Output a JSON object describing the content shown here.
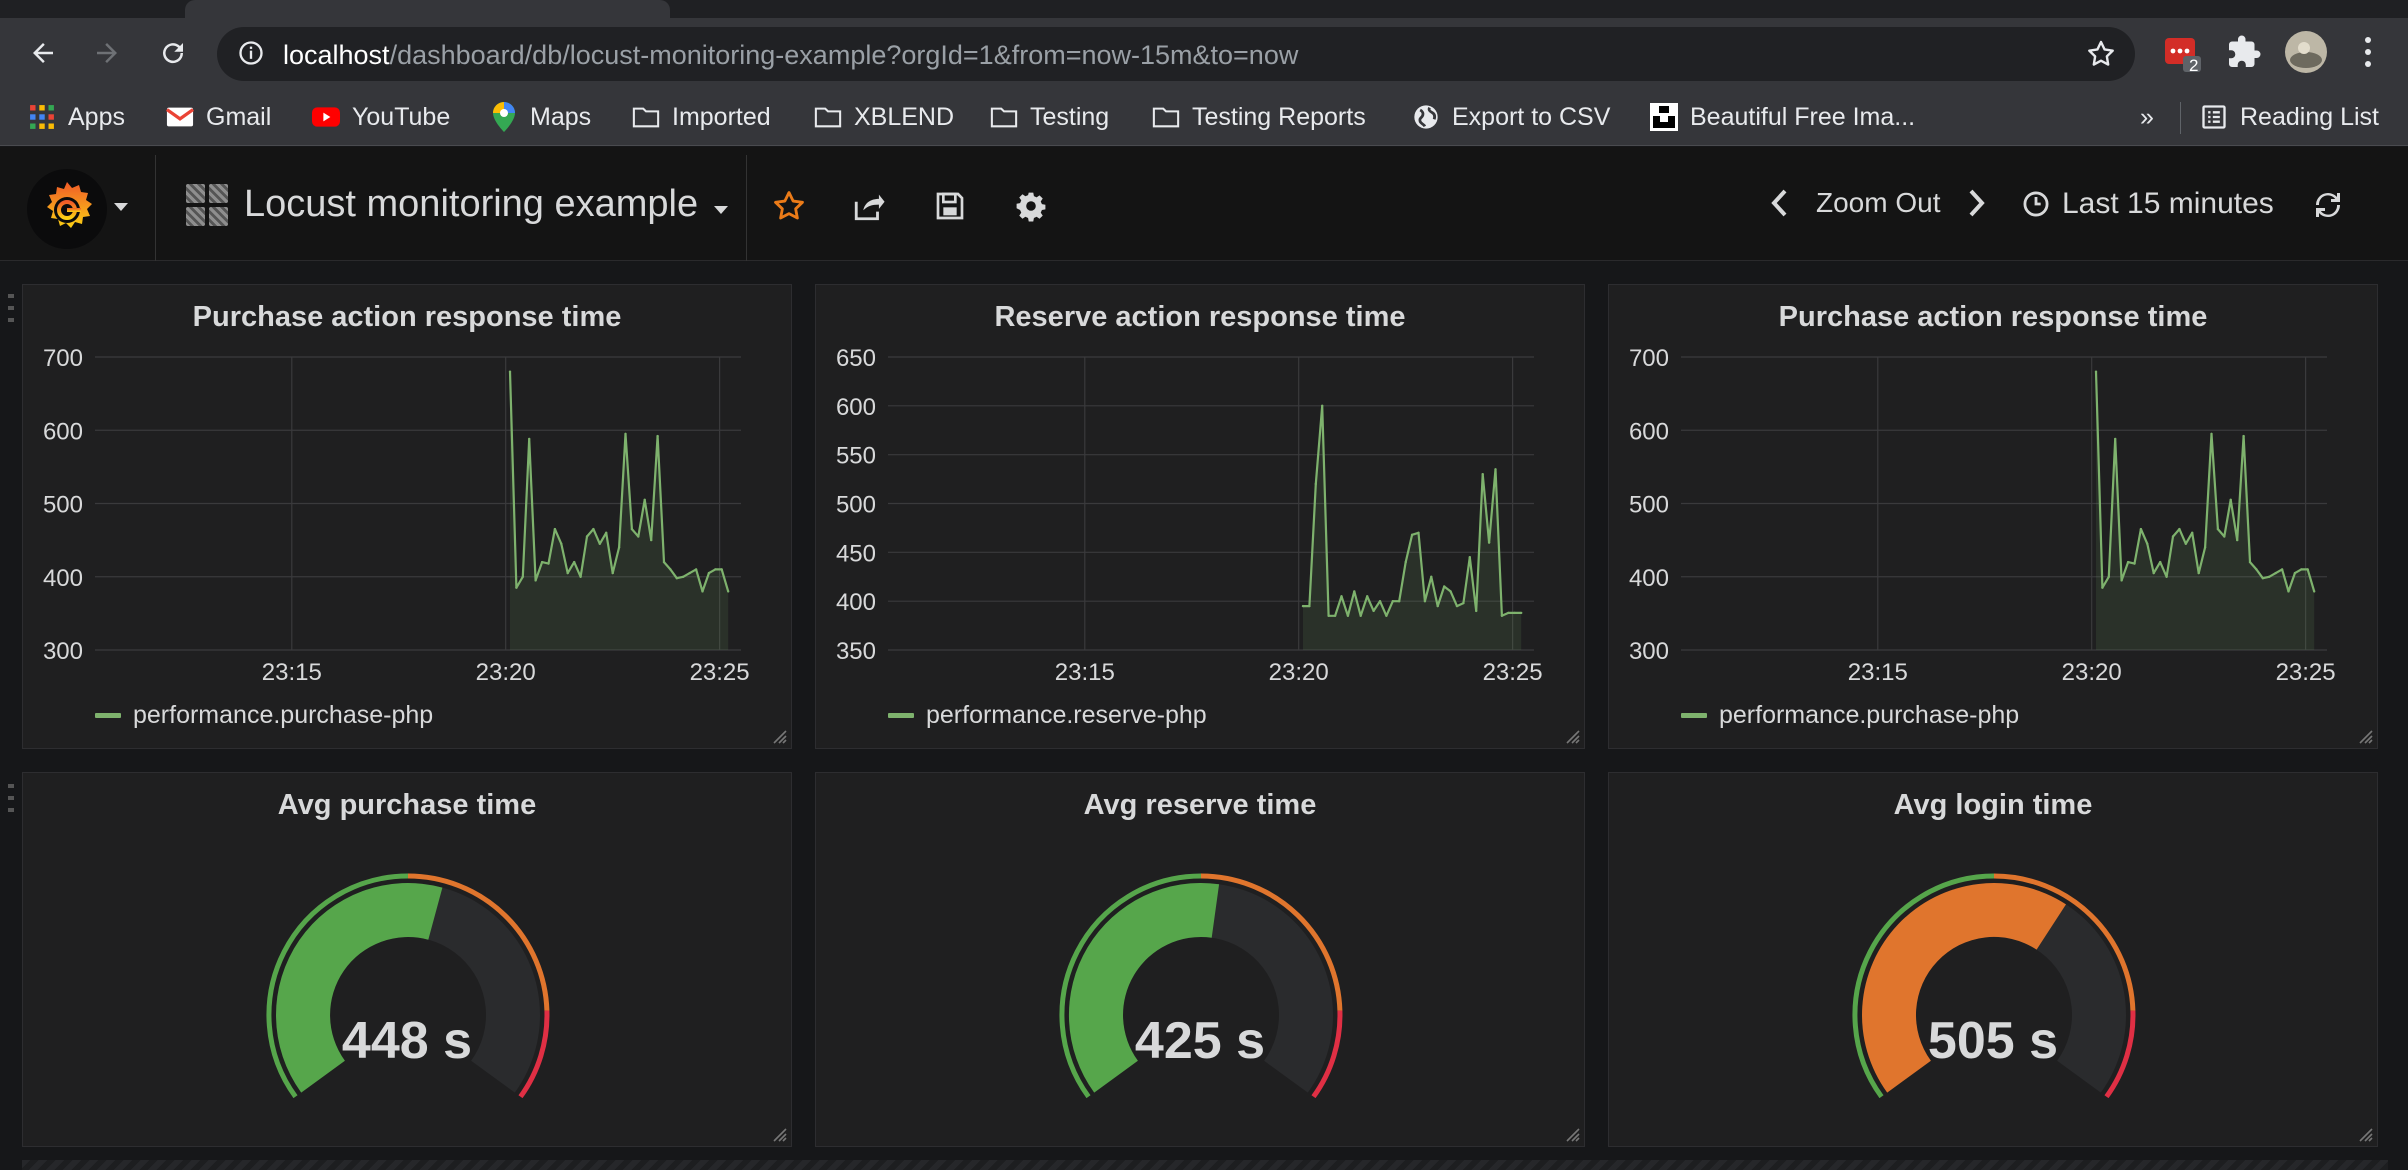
{
  "browser": {
    "url_host": "localhost",
    "url_path": "/dashboard/db/locust-monitoring-example?orgId=1&from=now-15m&to=now",
    "extension_badge": "2",
    "bookmarks": [
      {
        "label": "Apps",
        "icon": "apps-grid-icon"
      },
      {
        "label": "Gmail",
        "icon": "gmail-icon"
      },
      {
        "label": "YouTube",
        "icon": "youtube-icon"
      },
      {
        "label": "Maps",
        "icon": "maps-pin-icon"
      },
      {
        "label": "Imported",
        "icon": "folder-icon"
      },
      {
        "label": "XBLEND",
        "icon": "folder-icon"
      },
      {
        "label": "Testing",
        "icon": "folder-icon"
      },
      {
        "label": "Testing Reports",
        "icon": "folder-icon"
      },
      {
        "label": "Export to CSV",
        "icon": "globe-icon"
      },
      {
        "label": "Beautiful Free Ima...",
        "icon": "unsplash-icon"
      }
    ],
    "overflow": "»",
    "reading_list": "Reading List"
  },
  "dashboard": {
    "title": "Locust monitoring example",
    "zoom_out": "Zoom Out",
    "time_range": "Last 15 minutes",
    "colors": {
      "series": "#7eb26d",
      "ok": "#56a64b",
      "warn": "#e0752d",
      "crit": "#e02f44"
    }
  },
  "panels": [
    {
      "title": "Purchase action response time",
      "legend": "performance.purchase-php",
      "chart_data": {
        "type": "area",
        "ylim": [
          300,
          700
        ],
        "yticks": [
          "300",
          "400",
          "500",
          "600",
          "700"
        ],
        "xticks": [
          "23:15",
          "23:20",
          "23:25"
        ],
        "xlim": [
          10.4,
          25.5
        ],
        "series": [
          {
            "name": "performance.purchase-php",
            "x": [
              20.1,
              20.25,
              20.4,
              20.55,
              20.7,
              20.85,
              21.0,
              21.15,
              21.3,
              21.45,
              21.6,
              21.75,
              21.9,
              22.05,
              22.2,
              22.35,
              22.5,
              22.65,
              22.8,
              22.95,
              23.1,
              23.25,
              23.4,
              23.55,
              23.7,
              23.85,
              24.0,
              24.15,
              24.3,
              24.45,
              24.6,
              24.75,
              24.9,
              25.05,
              25.2
            ],
            "values": [
              680,
              385,
              400,
              588,
              395,
              420,
              418,
              465,
              445,
              405,
              420,
              400,
              455,
              465,
              445,
              460,
              405,
              440,
              595,
              465,
              455,
              505,
              450,
              592,
              420,
              410,
              398,
              400,
              405,
              410,
              380,
              405,
              410,
              410,
              380
            ]
          }
        ]
      }
    },
    {
      "title": "Reserve action response time",
      "legend": "performance.reserve-php",
      "chart_data": {
        "type": "area",
        "ylim": [
          350,
          650
        ],
        "yticks": [
          "350",
          "400",
          "450",
          "500",
          "550",
          "600",
          "650"
        ],
        "xticks": [
          "23:15",
          "23:20",
          "23:25"
        ],
        "xlim": [
          10.4,
          25.5
        ],
        "series": [
          {
            "name": "performance.reserve-php",
            "x": [
              20.1,
              20.25,
              20.4,
              20.55,
              20.7,
              20.85,
              21.0,
              21.15,
              21.3,
              21.45,
              21.6,
              21.75,
              21.9,
              22.05,
              22.2,
              22.35,
              22.5,
              22.65,
              22.8,
              22.95,
              23.1,
              23.25,
              23.4,
              23.55,
              23.7,
              23.85,
              24.0,
              24.15,
              24.3,
              24.45,
              24.6,
              24.75,
              24.9,
              25.05,
              25.2
            ],
            "values": [
              395,
              395,
              520,
              600,
              385,
              385,
              405,
              385,
              410,
              385,
              405,
              390,
              400,
              385,
              400,
              400,
              440,
              468,
              470,
              400,
              425,
              395,
              415,
              410,
              395,
              398,
              445,
              390,
              530,
              460,
              535,
              385,
              388,
              388,
              388
            ]
          }
        ]
      }
    },
    {
      "title": "Purchase action response time",
      "legend": "performance.purchase-php",
      "chart_data": {
        "type": "area",
        "ylim": [
          300,
          700
        ],
        "yticks": [
          "300",
          "400",
          "500",
          "600",
          "700"
        ],
        "xticks": [
          "23:15",
          "23:20",
          "23:25"
        ],
        "xlim": [
          10.4,
          25.5
        ],
        "series": [
          {
            "name": "performance.purchase-php",
            "x": [
              20.1,
              20.25,
              20.4,
              20.55,
              20.7,
              20.85,
              21.0,
              21.15,
              21.3,
              21.45,
              21.6,
              21.75,
              21.9,
              22.05,
              22.2,
              22.35,
              22.5,
              22.65,
              22.8,
              22.95,
              23.1,
              23.25,
              23.4,
              23.55,
              23.7,
              23.85,
              24.0,
              24.15,
              24.3,
              24.45,
              24.6,
              24.75,
              24.9,
              25.05,
              25.2
            ],
            "values": [
              680,
              385,
              400,
              588,
              395,
              420,
              418,
              465,
              445,
              405,
              420,
              400,
              455,
              465,
              445,
              460,
              405,
              440,
              595,
              465,
              455,
              505,
              450,
              592,
              420,
              410,
              398,
              400,
              405,
              410,
              380,
              405,
              410,
              410,
              380
            ]
          }
        ]
      }
    }
  ],
  "gauges": [
    {
      "title": "Avg purchase time",
      "value_text": "448 s",
      "value": 448,
      "min": 0,
      "max": 800,
      "fill_color": "#56a64b"
    },
    {
      "title": "Avg reserve time",
      "value_text": "425 s",
      "value": 425,
      "min": 0,
      "max": 800,
      "fill_color": "#56a64b"
    },
    {
      "title": "Avg login time",
      "value_text": "505 s",
      "value": 505,
      "min": 0,
      "max": 800,
      "fill_color": "#e0752d"
    }
  ]
}
